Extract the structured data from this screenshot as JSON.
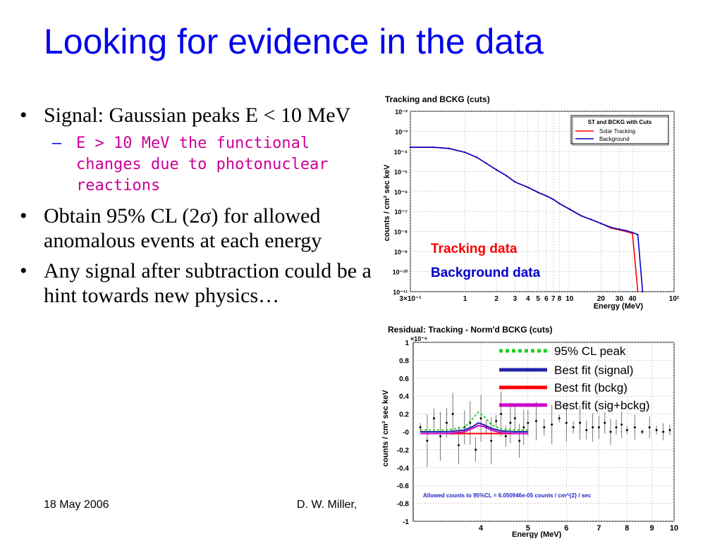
{
  "slide": {
    "title": "Looking for evidence in the data",
    "bullets": [
      {
        "text": "Signal: Gaussian peaks E < 10 MeV",
        "level": 1
      },
      {
        "text": "E > 10 MeV the functional changes due to photonuclear reactions",
        "level": 2
      },
      {
        "text": "Obtain 95% CL (2σ) for allowed anomalous events at each energy",
        "level": 1
      },
      {
        "text": "Any signal after subtraction could be a hint towards new physics…",
        "level": 1
      }
    ],
    "footer_date": "18 May 2006",
    "footer_author": "D. W. Miller,",
    "colors": {
      "title": "#0000ee",
      "sub_bullet": "#cc0099",
      "tracking": "#ff0000",
      "background": "#0000cc",
      "cl": "#22cc22",
      "sigbckg": "#cc00cc"
    }
  },
  "chart_data": [
    {
      "type": "line",
      "title": "Tracking and BCKG (cuts)",
      "xlabel": "Energy (MeV)",
      "ylabel": "counts / cm² sec keV",
      "xscale": "log",
      "yscale": "log",
      "xlim": [
        0.3,
        100
      ],
      "ylim": [
        1e-11,
        0.01
      ],
      "xtick_labels": [
        "3×10⁻¹",
        "1",
        "2",
        "3",
        "4",
        "5",
        "6",
        "7",
        "8",
        "10",
        "20",
        "30",
        "40",
        "10²"
      ],
      "xtick_values": [
        0.3,
        1,
        2,
        3,
        4,
        5,
        6,
        7,
        8,
        10,
        20,
        30,
        40,
        100
      ],
      "ytick_labels": [
        "10⁻²",
        "10⁻³",
        "10⁻⁴",
        "10⁻⁵",
        "10⁻⁶",
        "10⁻⁷",
        "10⁻⁸",
        "10⁻⁹",
        "10⁻¹⁰",
        "10⁻¹¹"
      ],
      "ytick_exps": [
        -2,
        -3,
        -4,
        -5,
        -6,
        -7,
        -8,
        -9,
        -10,
        -11
      ],
      "legend": {
        "title": "ST and BCKG with Cuts",
        "entries": [
          "Solar Tracking",
          "Background"
        ],
        "placement": "top-right"
      },
      "annotations": [
        "Tracking data",
        "Background data"
      ],
      "series": [
        {
          "name": "Solar Tracking",
          "color": "#ff0000",
          "x": [
            0.3,
            0.5,
            0.7,
            1.0,
            1.3,
            1.6,
            2.0,
            2.5,
            3.0,
            4.0,
            5.0,
            6.0,
            7.0,
            8.0,
            10,
            13,
            16,
            20,
            25,
            30,
            35,
            40,
            45
          ],
          "y": [
            0.00016,
            0.00016,
            0.00014,
            9e-05,
            5e-05,
            2.5e-05,
            1.2e-05,
            6e-06,
            3e-06,
            1.6e-06,
            9e-07,
            6e-07,
            4e-07,
            2.5e-07,
            1.3e-07,
            6e-08,
            4e-08,
            2.5e-08,
            1.5e-08,
            1.2e-08,
            1e-08,
            8e-09,
            1e-11
          ]
        },
        {
          "name": "Background",
          "color": "#0000cc",
          "x": [
            0.3,
            0.5,
            0.7,
            1.0,
            1.3,
            1.6,
            2.0,
            2.5,
            3.0,
            4.0,
            5.0,
            6.0,
            7.0,
            8.0,
            10,
            13,
            16,
            20,
            25,
            30,
            35,
            40,
            45,
            50
          ],
          "y": [
            0.00016,
            0.00016,
            0.00014,
            9e-05,
            5e-05,
            2.5e-05,
            1.2e-05,
            6e-06,
            3e-06,
            1.6e-06,
            9e-07,
            6e-07,
            4e-07,
            2.5e-07,
            1.3e-07,
            6e-08,
            4e-08,
            2.5e-08,
            1.6e-08,
            1.3e-08,
            1.1e-08,
            9e-09,
            7e-09,
            1e-11
          ]
        }
      ]
    },
    {
      "type": "scatter",
      "title": "Residual: Tracking - Norm'd BCKG (cuts)",
      "xlabel": "Energy (MeV)",
      "ylabel": "counts / cm² sec keV",
      "y_multiplier": "×10⁻⁶",
      "xscale": "log",
      "xlim": [
        2.9,
        10
      ],
      "ylim": [
        -1,
        1
      ],
      "xtick_labels": [
        "4",
        "5",
        "6",
        "7",
        "8",
        "9",
        "10"
      ],
      "xtick_values": [
        4,
        5,
        6,
        7,
        8,
        9,
        10
      ],
      "ytick_labels": [
        "1",
        "0.8",
        "0.6",
        "0.4",
        "0.2",
        "-0",
        "-0.2",
        "-0.4",
        "-0.6",
        "-0.8",
        "-1"
      ],
      "ytick_values": [
        1,
        0.8,
        0.6,
        0.4,
        0.2,
        0,
        -0.2,
        -0.4,
        -0.6,
        -0.8,
        -1
      ],
      "annotation": "Allowed counts to 95%CL = 6.050946e-05 counts / cm^{2} / sec",
      "legend": {
        "entries": [
          "95% CL peak",
          "Best fit (signal)",
          "Best fit (bckg)",
          "Best fit (sig+bckg)"
        ],
        "placement": "top-right"
      },
      "residual_x": [
        3.0,
        3.1,
        3.2,
        3.3,
        3.4,
        3.5,
        3.6,
        3.7,
        3.8,
        3.9,
        4.0,
        4.1,
        4.2,
        4.3,
        4.4,
        4.5,
        4.6,
        4.7,
        4.8,
        4.9,
        5.0,
        5.2,
        5.4,
        5.6,
        5.8,
        6.0,
        6.2,
        6.4,
        6.6,
        6.8,
        7.0,
        7.2,
        7.4,
        7.6,
        7.8,
        8.0,
        8.3,
        8.6,
        8.9,
        9.2,
        9.5,
        9.8
      ],
      "residual_y": [
        0.05,
        -0.1,
        0.15,
        -0.05,
        0.1,
        0.2,
        -0.15,
        0.05,
        0.1,
        -0.2,
        0.15,
        0.05,
        -0.1,
        0.12,
        0.2,
        -0.05,
        0.1,
        0.15,
        -0.1,
        0.05,
        0.1,
        0.12,
        0.05,
        0.08,
        0.15,
        0.1,
        0.05,
        0.1,
        0.02,
        0.05,
        0.05,
        0.1,
        0.0,
        0.05,
        0.08,
        0.02,
        0.05,
        0.0,
        0.05,
        0.02,
        0.0,
        0.02
      ],
      "series": [
        {
          "name": "95% CL peak",
          "color": "#22cc22",
          "style": "dotted",
          "x": [
            3.0,
            3.4,
            3.7,
            3.85,
            3.95,
            4.05,
            4.2,
            4.4,
            4.7,
            5.0
          ],
          "y": [
            0.02,
            0.02,
            0.05,
            0.15,
            0.22,
            0.18,
            0.08,
            0.03,
            0.02,
            0.02
          ]
        },
        {
          "name": "Best fit (signal)",
          "color": "#2222aa",
          "x": [
            3.0,
            3.4,
            3.7,
            3.85,
            3.95,
            4.05,
            4.2,
            4.4,
            4.7,
            5.0
          ],
          "y": [
            0.0,
            0.0,
            0.02,
            0.06,
            0.1,
            0.08,
            0.04,
            0.01,
            0.0,
            0.0
          ]
        },
        {
          "name": "Best fit (bckg)",
          "color": "#ff0000",
          "x": [
            3.0,
            5.0
          ],
          "y": [
            -0.02,
            -0.02
          ]
        },
        {
          "name": "Best fit (sig+bckg)",
          "color": "#cc00cc",
          "x": [
            3.0,
            3.4,
            3.7,
            3.85,
            3.95,
            4.05,
            4.2,
            4.4,
            4.7,
            5.0
          ],
          "y": [
            -0.02,
            -0.02,
            0.0,
            0.04,
            0.07,
            0.06,
            0.02,
            -0.01,
            -0.02,
            -0.02
          ]
        }
      ]
    }
  ]
}
